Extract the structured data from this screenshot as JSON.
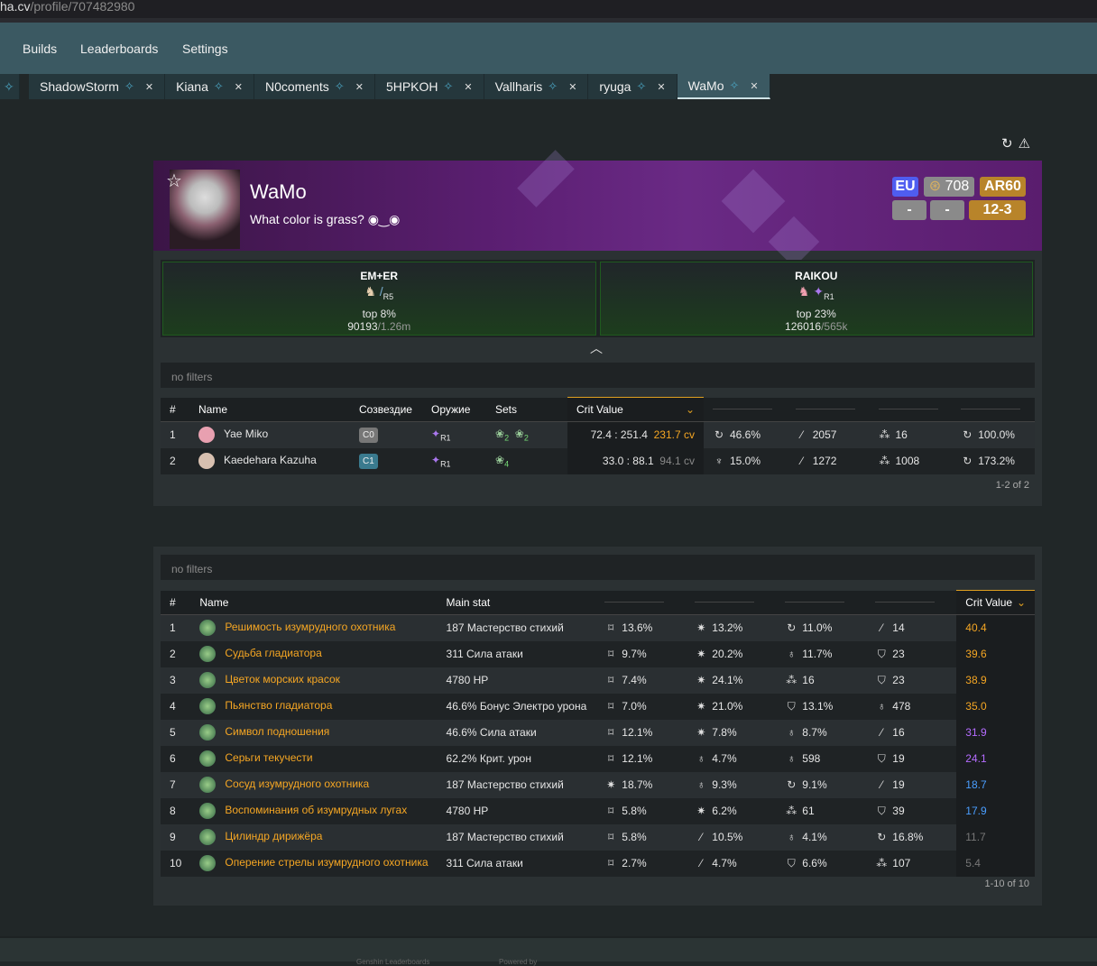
{
  "url": {
    "host": "ha.cv",
    "path": "/profile/707482980"
  },
  "nav": [
    "Builds",
    "Leaderboards",
    "Settings"
  ],
  "tabs": [
    {
      "label": "ShadowStorm"
    },
    {
      "label": "Kiana"
    },
    {
      "label": "N0coments"
    },
    {
      "label": "5HPKOH"
    },
    {
      "label": "Vallharis"
    },
    {
      "label": "ryuga"
    },
    {
      "label": "WaMo",
      "active": true
    }
  ],
  "profile": {
    "name": "WaMo",
    "signature": "What color is grass?  ◉‿◉",
    "region": "EU",
    "achievements": "708",
    "ar": "AR60",
    "badge_a": "-",
    "badge_b": "-",
    "abyss": "12-3"
  },
  "highlights": [
    {
      "title": "EM+ER",
      "refine": "R5",
      "top": "top 8%",
      "rank": "90193",
      "total": "/1.26m"
    },
    {
      "title": "RAIKOU",
      "refine": "R1",
      "top": "top 23%",
      "rank": "126016",
      "total": "/565k"
    }
  ],
  "characters": {
    "filter": "no filters",
    "headers": [
      "#",
      "Name",
      "Созвездие",
      "Оружие",
      "Sets",
      "Crit Value"
    ],
    "rows": [
      {
        "n": "1",
        "name": "Yae Miko",
        "cons": "C0",
        "cons_color": "#777777",
        "weapon": "R1",
        "sets": [
          "2",
          "2"
        ],
        "ratio": "72.4 : 251.4",
        "cv": "231.7 cv",
        "cv_color": "#f5a623",
        "stats": [
          {
            "icon": "electro-dmg-icon",
            "v": "46.6%"
          },
          {
            "icon": "atk-icon",
            "v": "2057"
          },
          {
            "icon": "em-icon",
            "v": "16"
          },
          {
            "icon": "er-icon",
            "v": "100.0%"
          }
        ]
      },
      {
        "n": "2",
        "name": "Kaedehara Kazuha",
        "cons": "C1",
        "cons_color": "#3a7a8e",
        "weapon": "R1",
        "sets": [
          "4"
        ],
        "ratio": "33.0 : 88.1",
        "cv": "94.1 cv",
        "cv_color": "#888888",
        "stats": [
          {
            "icon": "anemo-dmg-icon",
            "v": "15.0%"
          },
          {
            "icon": "atk-icon",
            "v": "1272"
          },
          {
            "icon": "em-icon",
            "v": "1008"
          },
          {
            "icon": "er-icon",
            "v": "173.2%"
          }
        ]
      }
    ],
    "pagination": "1-2 of 2"
  },
  "artifacts": {
    "filter": "no filters",
    "headers": [
      "#",
      "Name",
      "Main stat",
      "Crit Value"
    ],
    "rows": [
      {
        "n": "1",
        "name": "Решимость изумрудного охотника",
        "main": "187 Мастерство стихий",
        "subs": [
          [
            "crit-rate",
            "13.6%"
          ],
          [
            "crit-dmg",
            "13.2%"
          ],
          [
            "er",
            "11.0%"
          ],
          [
            "atk",
            "14"
          ]
        ],
        "cv": "40.4",
        "cv_color": "#f5a623"
      },
      {
        "n": "2",
        "name": "Судьба гладиатора",
        "main": "311 Сила атаки",
        "subs": [
          [
            "crit-rate",
            "9.7%"
          ],
          [
            "crit-dmg",
            "20.2%"
          ],
          [
            "hp-percent",
            "11.7%"
          ],
          [
            "def",
            "23"
          ]
        ],
        "cv": "39.6",
        "cv_color": "#f5a623"
      },
      {
        "n": "3",
        "name": "Цветок морских красок",
        "main": "4780 HP",
        "subs": [
          [
            "crit-rate",
            "7.4%"
          ],
          [
            "crit-dmg",
            "24.1%"
          ],
          [
            "em",
            "16"
          ],
          [
            "def",
            "23"
          ]
        ],
        "cv": "38.9",
        "cv_color": "#f5a623"
      },
      {
        "n": "4",
        "name": "Пьянство гладиатора",
        "main": "46.6% Бонус Электро урона",
        "subs": [
          [
            "crit-rate",
            "7.0%"
          ],
          [
            "crit-dmg",
            "21.0%"
          ],
          [
            "def-percent",
            "13.1%"
          ],
          [
            "hp",
            "478"
          ]
        ],
        "cv": "35.0",
        "cv_color": "#f5a623"
      },
      {
        "n": "5",
        "name": "Символ подношения",
        "main": "46.6% Сила атаки",
        "subs": [
          [
            "crit-rate",
            "12.1%"
          ],
          [
            "crit-dmg",
            "7.8%"
          ],
          [
            "hp-percent",
            "8.7%"
          ],
          [
            "atk",
            "16"
          ]
        ],
        "cv": "31.9",
        "cv_color": "#b56cff"
      },
      {
        "n": "6",
        "name": "Серьги текучести",
        "main": "62.2% Крит. урон",
        "subs": [
          [
            "crit-rate",
            "12.1%"
          ],
          [
            "hp-percent",
            "4.7%"
          ],
          [
            "hp",
            "598"
          ],
          [
            "def",
            "19"
          ]
        ],
        "cv": "24.1",
        "cv_color": "#b56cff"
      },
      {
        "n": "7",
        "name": "Сосуд изумрудного охотника",
        "main": "187 Мастерство стихий",
        "subs": [
          [
            "crit-dmg",
            "18.7%"
          ],
          [
            "hp-percent",
            "9.3%"
          ],
          [
            "er",
            "9.1%"
          ],
          [
            "atk",
            "19"
          ]
        ],
        "cv": "18.7",
        "cv_color": "#4a9eff"
      },
      {
        "n": "8",
        "name": "Воспоминания об изумрудных лугах",
        "main": "4780 HP",
        "subs": [
          [
            "crit-rate",
            "5.8%"
          ],
          [
            "crit-dmg",
            "6.2%"
          ],
          [
            "em",
            "61"
          ],
          [
            "def",
            "39"
          ]
        ],
        "cv": "17.9",
        "cv_color": "#4a9eff"
      },
      {
        "n": "9",
        "name": "Цилиндр дирижёра",
        "main": "187 Мастерство стихий",
        "subs": [
          [
            "crit-rate",
            "5.8%"
          ],
          [
            "atk-percent",
            "10.5%"
          ],
          [
            "hp-percent",
            "4.1%"
          ],
          [
            "er",
            "16.8%"
          ]
        ],
        "cv": "11.7",
        "cv_color": "#777777"
      },
      {
        "n": "10",
        "name": "Оперение стрелы изумрудного охотника",
        "main": "311 Сила атаки",
        "subs": [
          [
            "crit-rate",
            "2.7%"
          ],
          [
            "atk-percent",
            "4.7%"
          ],
          [
            "def-percent",
            "6.6%"
          ],
          [
            "em",
            "107"
          ]
        ],
        "cv": "5.4",
        "cv_color": "#777777"
      }
    ],
    "pagination": "1-10 of 10"
  },
  "footer": [
    "Genshin Leaderboards",
    "Powered by"
  ]
}
